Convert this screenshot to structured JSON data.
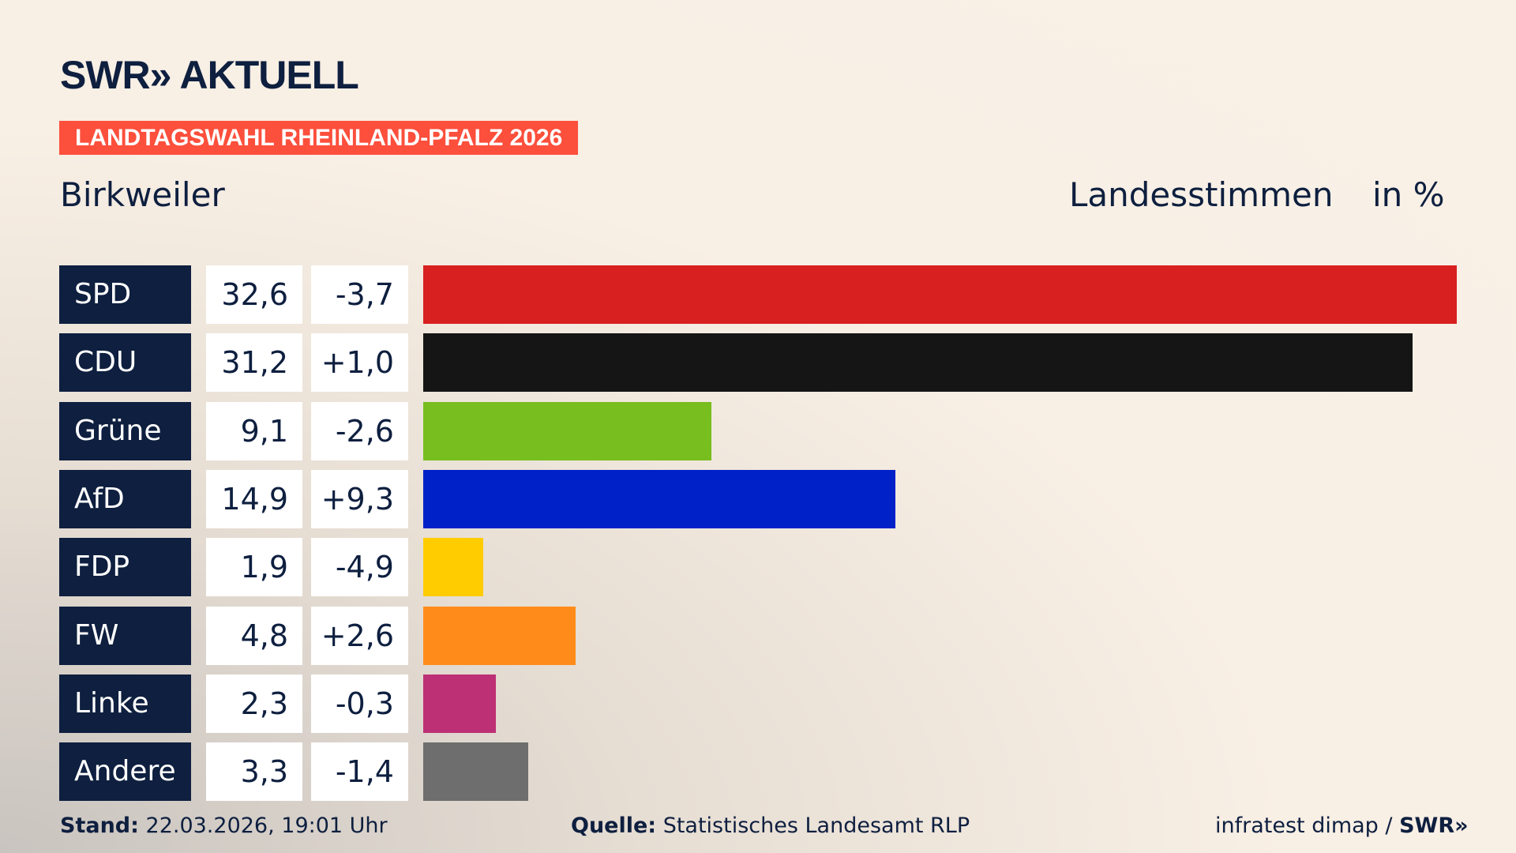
{
  "logo": "SWR» AKTUELL",
  "banner": "LANDTAGSWAHL RHEINLAND-PFALZ 2026",
  "place": "Birkweiler",
  "vote_type": "Landesstimmen",
  "unit": "in %",
  "chart_data": {
    "type": "bar",
    "orientation": "horizontal",
    "categories": [
      "SPD",
      "CDU",
      "Grüne",
      "AfD",
      "FDP",
      "FW",
      "Linke",
      "Andere"
    ],
    "values": [
      32.6,
      31.2,
      9.1,
      14.9,
      1.9,
      4.8,
      2.3,
      3.3
    ],
    "value_labels": [
      "32,6",
      "31,2",
      "9,1",
      "14,9",
      "1,9",
      "4,8",
      "2,3",
      "3,3"
    ],
    "diff_labels": [
      "-3,7",
      "+1,0",
      "-2,6",
      "+9,3",
      "-4,9",
      "+2,6",
      "-0,3",
      "-1,4"
    ],
    "colors": [
      "#d82020",
      "#151515",
      "#78be1e",
      "#0020c8",
      "#ffcc00",
      "#ff8c1a",
      "#be3075",
      "#6e6e6e"
    ],
    "xlim": [
      0,
      32.6
    ]
  },
  "footer": {
    "stand_label": "Stand:",
    "stand_value": "22.03.2026, 19:01 Uhr",
    "source_label": "Quelle:",
    "source_value": "Statistisches Landesamt RLP",
    "credit": "infratest dimap / ",
    "credit_logo": "SWR»"
  }
}
